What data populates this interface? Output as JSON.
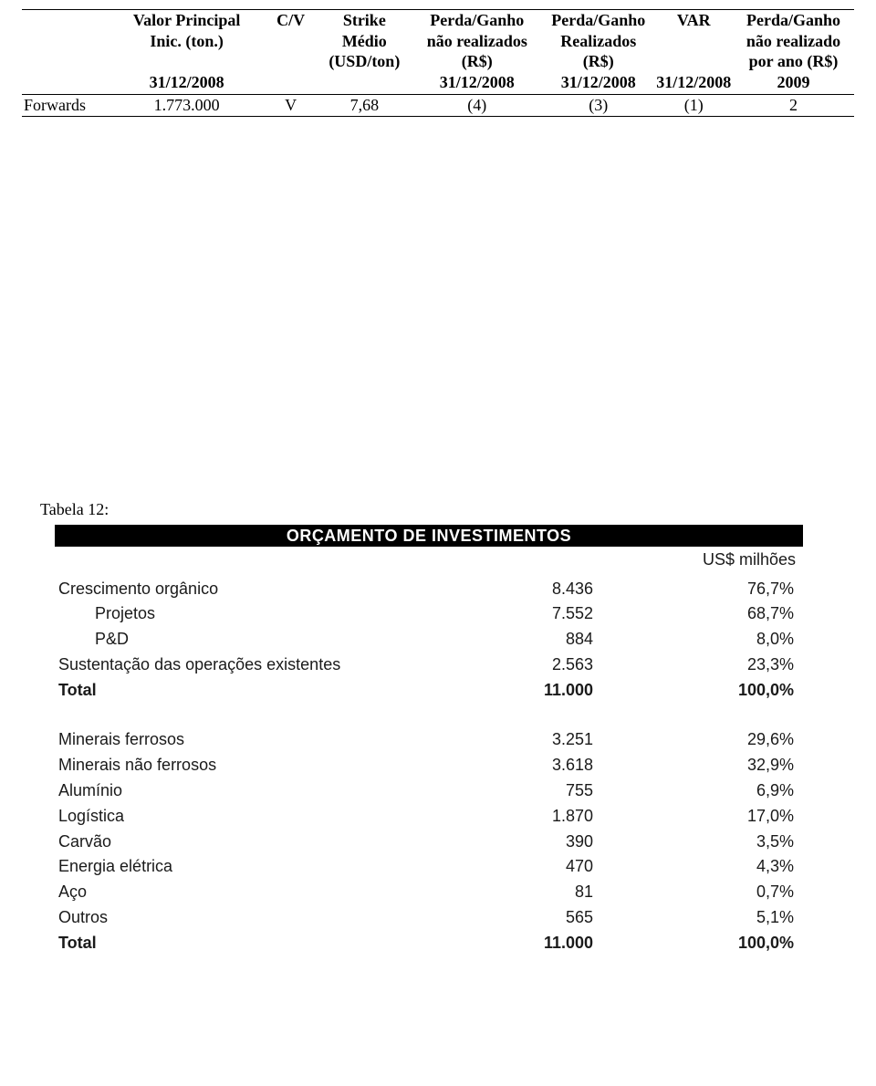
{
  "top_table": {
    "headers": {
      "label": "",
      "princ_l1": "Valor Principal",
      "princ_l2": "Inic.    (ton.)",
      "cv": "C/V",
      "strike_l1": "Strike",
      "strike_l2": "Médio",
      "strike_l3": "(USD/ton)",
      "pg1_l1": "Perda/Ganho",
      "pg1_l2": "não realizados",
      "pg1_l3": "(R$)",
      "pg2_l1": "Perda/Ganho",
      "pg2_l2": "Realizados",
      "pg2_l3": "(R$)",
      "var": "VAR",
      "pg3_l1": "Perda/Ganho",
      "pg3_l2": "não realizado",
      "pg3_l3": "por ano (R$)"
    },
    "dates": {
      "princ": "31/12/2008",
      "pg1": "31/12/2008",
      "pg2": "31/12/2008",
      "var": "31/12/2008",
      "pg3": "2009"
    },
    "row": {
      "label": "Forwards",
      "princ": "1.773.000",
      "cv": "V",
      "strike": "7,68",
      "pg1": "(4)",
      "pg2": "(3)",
      "var": "(1)",
      "pg3": "2"
    }
  },
  "caption": "Tabela 12:",
  "tbl12": {
    "title": "ORÇAMENTO DE INVESTIMENTOS",
    "unit": "US$ milhões",
    "section1": [
      {
        "label": "Crescimento orgânico",
        "value": "8.436",
        "pct": "76,7%",
        "indent": false,
        "bold": false
      },
      {
        "label": "Projetos",
        "value": "7.552",
        "pct": "68,7%",
        "indent": true,
        "bold": false
      },
      {
        "label": "P&D",
        "value": "884",
        "pct": "8,0%",
        "indent": true,
        "bold": false
      },
      {
        "label": "Sustentação das operações existentes",
        "value": "2.563",
        "pct": "23,3%",
        "indent": false,
        "bold": false
      },
      {
        "label": "Total",
        "value": "11.000",
        "pct": "100,0%",
        "indent": false,
        "bold": true
      }
    ],
    "section2": [
      {
        "label": "Minerais ferrosos",
        "value": "3.251",
        "pct": "29,6%",
        "indent": false,
        "bold": false
      },
      {
        "label": "Minerais não ferrosos",
        "value": "3.618",
        "pct": "32,9%",
        "indent": false,
        "bold": false
      },
      {
        "label": "Alumínio",
        "value": "755",
        "pct": "6,9%",
        "indent": false,
        "bold": false
      },
      {
        "label": "Logística",
        "value": "1.870",
        "pct": "17,0%",
        "indent": false,
        "bold": false
      },
      {
        "label": "Carvão",
        "value": "390",
        "pct": "3,5%",
        "indent": false,
        "bold": false
      },
      {
        "label": "Energia elétrica",
        "value": "470",
        "pct": "4,3%",
        "indent": false,
        "bold": false
      },
      {
        "label": "Aço",
        "value": "81",
        "pct": "0,7%",
        "indent": false,
        "bold": false
      },
      {
        "label": "Outros",
        "value": "565",
        "pct": "5,1%",
        "indent": false,
        "bold": false
      },
      {
        "label": "Total",
        "value": "11.000",
        "pct": "100,0%",
        "indent": false,
        "bold": true
      }
    ]
  }
}
